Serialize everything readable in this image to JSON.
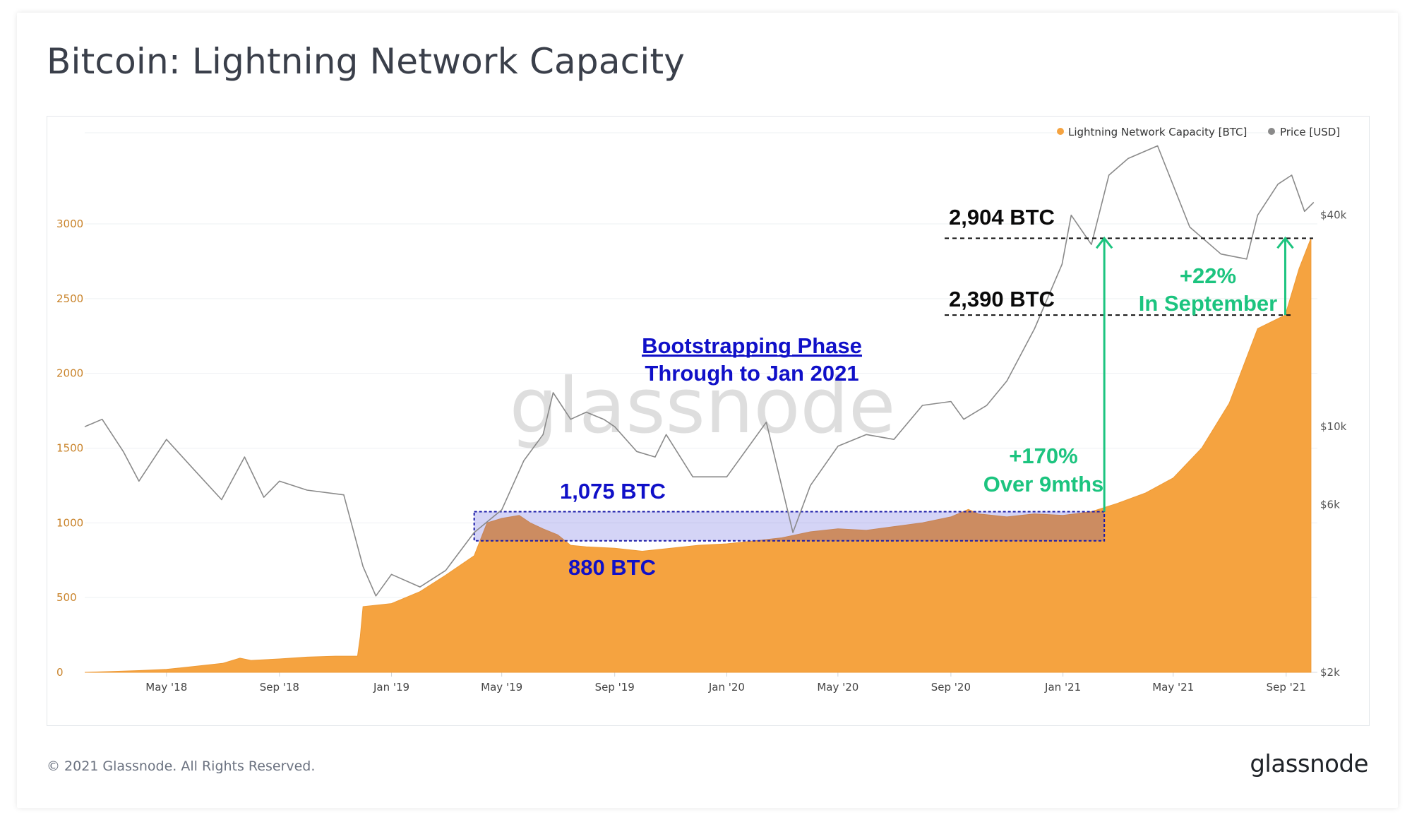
{
  "page": {
    "title": "Bitcoin: Lightning Network Capacity",
    "copyright": "© 2021 Glassnode. All Rights Reserved.",
    "logo": "glassnode",
    "watermark": "glassnode"
  },
  "chart_data": {
    "type": "area",
    "grid": "horizontal",
    "legend_position": "top-right",
    "x_tick_labels": [
      "May '18",
      "Sep '18",
      "Jan '19",
      "May '19",
      "Sep '19",
      "Jan '20",
      "May '20",
      "Sep '20",
      "Jan '21",
      "May '21",
      "Sep '21"
    ],
    "x_ticks": [
      "2018-05-01",
      "2018-09-01",
      "2019-01-01",
      "2019-05-01",
      "2019-09-01",
      "2020-01-01",
      "2020-05-01",
      "2020-09-01",
      "2021-01-01",
      "2021-05-01",
      "2021-09-01"
    ],
    "x_range": [
      "2018-02-01",
      "2021-10-05"
    ],
    "y_left": {
      "ticks": [
        0,
        500,
        1000,
        1500,
        2000,
        2500,
        3000
      ],
      "range": [
        0,
        3600
      ],
      "color": "#c9832a"
    },
    "y_right": {
      "scale": "log",
      "ticks": [
        2000,
        6000,
        10000,
        40000
      ],
      "tick_labels": [
        "$2k",
        "$6k",
        "$10k",
        "$40k"
      ],
      "range": [
        2000,
        68000
      ]
    },
    "series": [
      {
        "name": "Lightning Network Capacity [BTC]",
        "axis": "left",
        "color": "#f5a340",
        "points": [
          [
            "2018-02-01",
            0
          ],
          [
            "2018-03-01",
            5
          ],
          [
            "2018-04-01",
            12
          ],
          [
            "2018-05-01",
            20
          ],
          [
            "2018-06-01",
            40
          ],
          [
            "2018-07-01",
            60
          ],
          [
            "2018-07-20",
            95
          ],
          [
            "2018-08-01",
            80
          ],
          [
            "2018-09-01",
            90
          ],
          [
            "2018-10-01",
            102
          ],
          [
            "2018-11-01",
            108
          ],
          [
            "2018-11-25",
            108
          ],
          [
            "2018-11-28",
            240
          ],
          [
            "2018-12-01",
            440
          ],
          [
            "2019-01-01",
            460
          ],
          [
            "2019-02-01",
            540
          ],
          [
            "2019-03-01",
            650
          ],
          [
            "2019-04-01",
            780
          ],
          [
            "2019-04-15",
            1000
          ],
          [
            "2019-05-01",
            1030
          ],
          [
            "2019-05-20",
            1050
          ],
          [
            "2019-06-01",
            1000
          ],
          [
            "2019-06-15",
            960
          ],
          [
            "2019-07-01",
            920
          ],
          [
            "2019-07-15",
            850
          ],
          [
            "2019-08-01",
            840
          ],
          [
            "2019-09-01",
            830
          ],
          [
            "2019-10-01",
            810
          ],
          [
            "2019-11-01",
            830
          ],
          [
            "2019-12-01",
            850
          ],
          [
            "2020-01-01",
            860
          ],
          [
            "2020-02-01",
            880
          ],
          [
            "2020-03-01",
            900
          ],
          [
            "2020-04-01",
            940
          ],
          [
            "2020-05-01",
            960
          ],
          [
            "2020-06-01",
            950
          ],
          [
            "2020-07-01",
            975
          ],
          [
            "2020-08-01",
            1000
          ],
          [
            "2020-09-01",
            1040
          ],
          [
            "2020-09-20",
            1090
          ],
          [
            "2020-10-01",
            1060
          ],
          [
            "2020-11-01",
            1040
          ],
          [
            "2020-12-01",
            1060
          ],
          [
            "2021-01-01",
            1050
          ],
          [
            "2021-02-01",
            1075
          ],
          [
            "2021-03-01",
            1130
          ],
          [
            "2021-04-01",
            1200
          ],
          [
            "2021-05-01",
            1300
          ],
          [
            "2021-06-01",
            1500
          ],
          [
            "2021-07-01",
            1800
          ],
          [
            "2021-08-01",
            2300
          ],
          [
            "2021-08-31",
            2390
          ],
          [
            "2021-09-15",
            2700
          ],
          [
            "2021-09-28",
            2904
          ]
        ]
      },
      {
        "name": "Price [USD]",
        "axis": "right",
        "color": "#8a8a8a",
        "points": [
          [
            "2018-02-01",
            10000
          ],
          [
            "2018-02-20",
            10500
          ],
          [
            "2018-03-15",
            8500
          ],
          [
            "2018-04-01",
            7000
          ],
          [
            "2018-05-01",
            9200
          ],
          [
            "2018-06-01",
            7500
          ],
          [
            "2018-06-30",
            6200
          ],
          [
            "2018-07-25",
            8200
          ],
          [
            "2018-08-15",
            6300
          ],
          [
            "2018-09-01",
            7000
          ],
          [
            "2018-10-01",
            6600
          ],
          [
            "2018-11-10",
            6400
          ],
          [
            "2018-12-01",
            4000
          ],
          [
            "2018-12-15",
            3300
          ],
          [
            "2019-01-01",
            3800
          ],
          [
            "2019-02-01",
            3500
          ],
          [
            "2019-03-01",
            3900
          ],
          [
            "2019-04-01",
            5000
          ],
          [
            "2019-05-01",
            5800
          ],
          [
            "2019-05-25",
            8000
          ],
          [
            "2019-06-15",
            9500
          ],
          [
            "2019-06-26",
            12500
          ],
          [
            "2019-07-15",
            10500
          ],
          [
            "2019-08-01",
            11000
          ],
          [
            "2019-08-20",
            10500
          ],
          [
            "2019-09-01",
            10000
          ],
          [
            "2019-09-25",
            8500
          ],
          [
            "2019-10-15",
            8200
          ],
          [
            "2019-10-27",
            9500
          ],
          [
            "2019-11-25",
            7200
          ],
          [
            "2019-12-15",
            7200
          ],
          [
            "2020-01-01",
            7200
          ],
          [
            "2020-02-13",
            10300
          ],
          [
            "2020-03-13",
            5000
          ],
          [
            "2020-04-01",
            6800
          ],
          [
            "2020-05-01",
            8800
          ],
          [
            "2020-06-01",
            9500
          ],
          [
            "2020-07-01",
            9200
          ],
          [
            "2020-08-01",
            11500
          ],
          [
            "2020-09-01",
            11800
          ],
          [
            "2020-09-15",
            10500
          ],
          [
            "2020-10-10",
            11500
          ],
          [
            "2020-11-01",
            13500
          ],
          [
            "2020-12-01",
            19000
          ],
          [
            "2020-12-31",
            29000
          ],
          [
            "2021-01-10",
            40000
          ],
          [
            "2021-02-01",
            33000
          ],
          [
            "2021-02-20",
            52000
          ],
          [
            "2021-03-13",
            58000
          ],
          [
            "2021-04-14",
            63000
          ],
          [
            "2021-05-19",
            37000
          ],
          [
            "2021-06-22",
            31000
          ],
          [
            "2021-07-20",
            30000
          ],
          [
            "2021-08-01",
            40000
          ],
          [
            "2021-08-23",
            49000
          ],
          [
            "2021-09-07",
            52000
          ],
          [
            "2021-09-21",
            41000
          ],
          [
            "2021-10-01",
            43500
          ]
        ]
      }
    ],
    "annotations": {
      "bootstrap_title": "Bootstrapping Phase",
      "bootstrap_subtitle": "Through to Jan 2021",
      "box_upper_label": "1,075 BTC",
      "box_lower_label": "880 BTC",
      "box_range": {
        "x_start": "2019-04-01",
        "x_end": "2021-02-15",
        "y_low": 880,
        "y_high": 1075
      },
      "high_label": "2,904 BTC",
      "high_value": 2904,
      "mid_label": "2,390 BTC",
      "mid_value": 2390,
      "gain_9m": "+170%",
      "gain_9m_sub": "Over 9mths",
      "gain_sep": "+22%",
      "gain_sep_sub": "In September",
      "arrow_9m_x": "2021-02-15",
      "arrow_sep_x": "2021-08-31",
      "blue_color": "#1010c8",
      "green_color": "#1cc47f"
    }
  }
}
